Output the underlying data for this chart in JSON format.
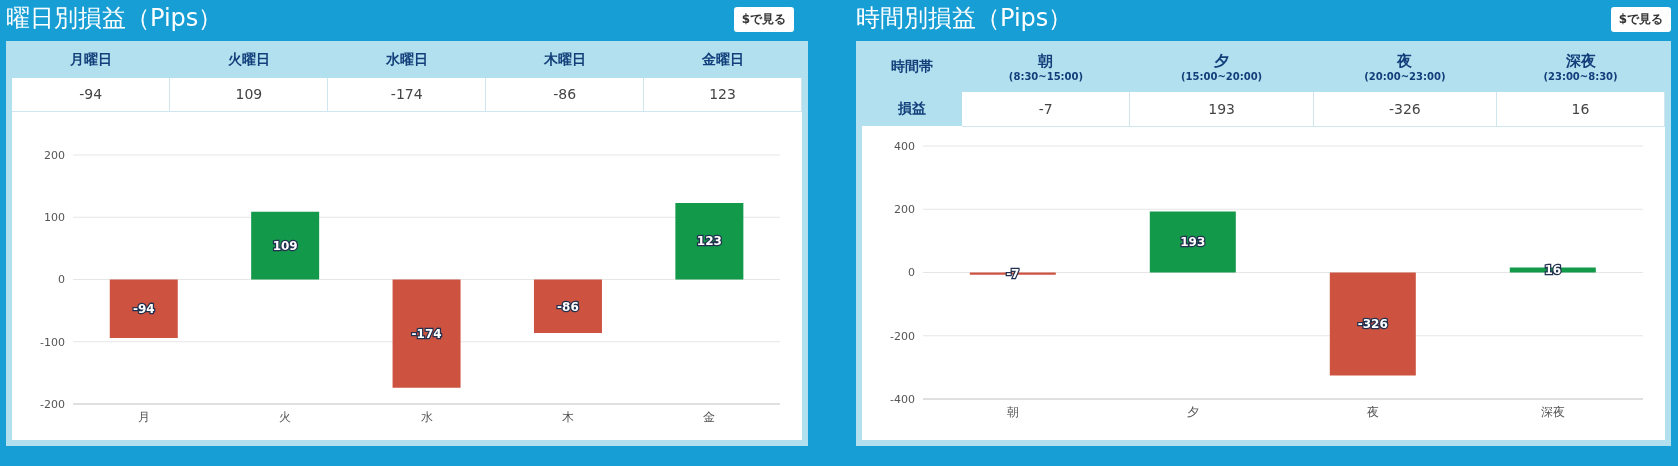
{
  "chart_data": [
    {
      "type": "bar",
      "title": "曜日別損益（Pips）",
      "categories": [
        "月",
        "火",
        "水",
        "木",
        "金"
      ],
      "values": [
        -94,
        109,
        -174,
        -86,
        123
      ],
      "colors": [
        "#cd5340",
        "#129a4a",
        "#cd5340",
        "#cd5340",
        "#129a4a"
      ],
      "ylim": [
        -200,
        200
      ],
      "yticks": [
        -200,
        -100,
        0,
        100,
        200
      ],
      "grid": "y",
      "data_labels": true,
      "annotations": [
        "$で見る",
        "月曜日",
        "火曜日",
        "水曜日",
        "木曜日",
        "金曜日",
        "-94",
        "109",
        "-174",
        "-86",
        "123"
      ]
    },
    {
      "type": "bar",
      "title": "時間別損益（Pips）",
      "categories": [
        "朝",
        "夕",
        "夜",
        "深夜"
      ],
      "values": [
        -7,
        193,
        -326,
        16
      ],
      "colors": [
        "#cd5340",
        "#129a4a",
        "#cd5340",
        "#129a4a"
      ],
      "ylim": [
        -400,
        400
      ],
      "yticks": [
        -400,
        -200,
        0,
        200,
        400
      ],
      "grid": "y",
      "data_labels": true,
      "annotations": [
        "$で見る",
        "時間帯",
        "損益",
        "朝",
        "(8:30~15:00)",
        "夕",
        "(15:00~20:00)",
        "夜",
        "(20:00~23:00)",
        "深夜",
        "(23:00~8:30)",
        "-7",
        "193",
        "-326",
        "16"
      ]
    }
  ]
}
